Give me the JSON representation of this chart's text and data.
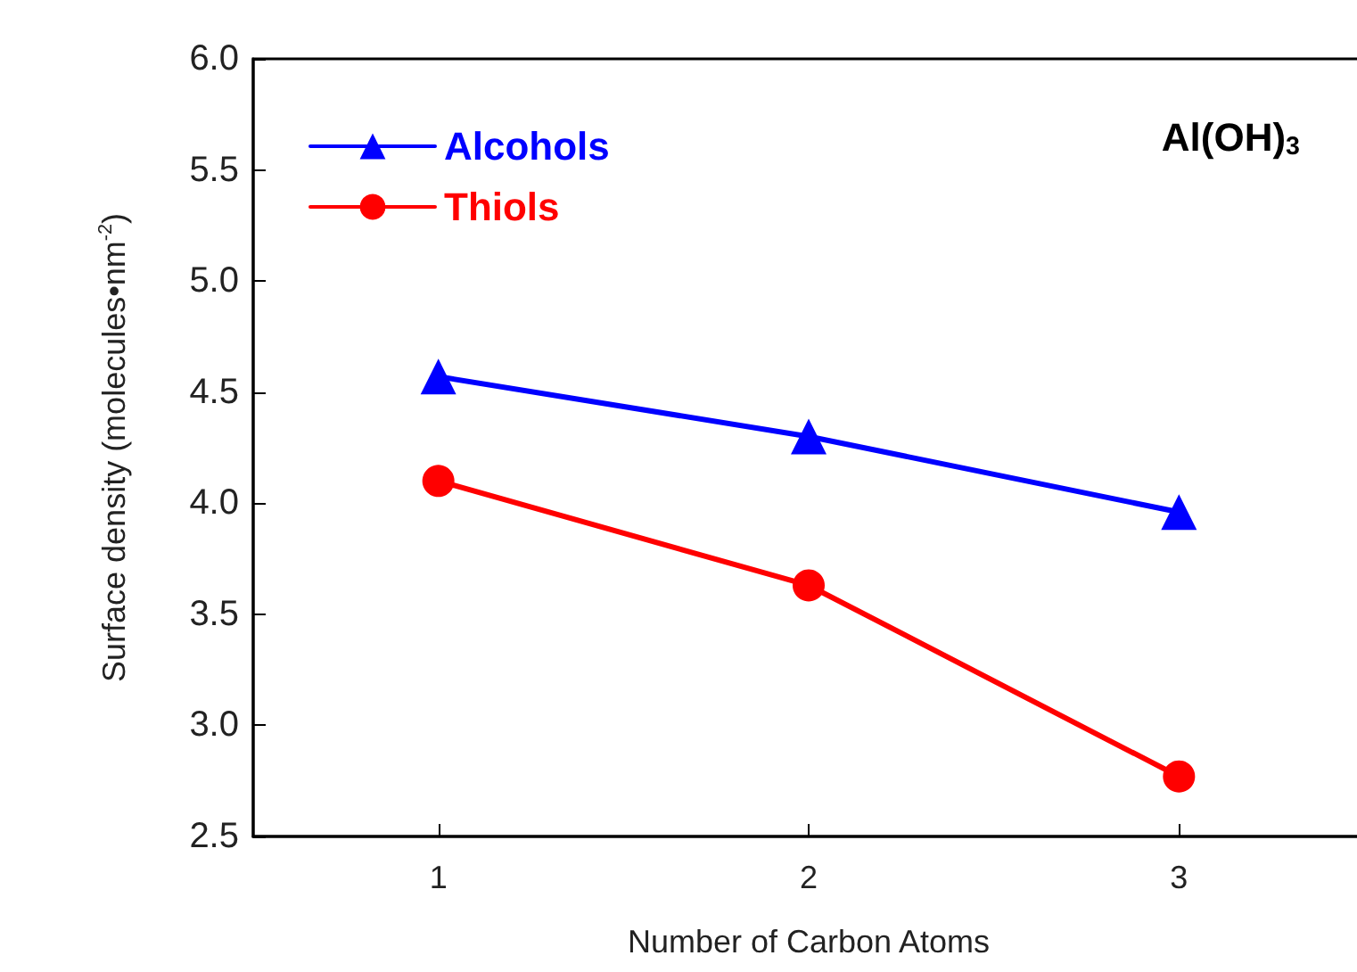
{
  "chart_data": {
    "type": "line",
    "xlabel": "Number of Carbon Atoms",
    "ylabel": "Surface density (molecules•nm$^{-2}$)",
    "x": [
      1,
      2,
      3
    ],
    "xlim": [
      0.5,
      3.5
    ],
    "xticks": [
      1,
      2,
      3
    ],
    "ylim": [
      2.5,
      6.0
    ],
    "yticks": [
      {
        "value": 2.5,
        "label": "2.5"
      },
      {
        "value": 3.0,
        "label": "3.0"
      },
      {
        "value": 3.5,
        "label": "3.5"
      },
      {
        "value": 4.0,
        "label": "4.0"
      },
      {
        "value": 4.5,
        "label": "4.5"
      },
      {
        "value": 5.0,
        "label": "5.0"
      },
      {
        "value": 5.5,
        "label": "5.5"
      },
      {
        "value": 6.0,
        "label": "6.0"
      }
    ],
    "series": [
      {
        "name": "Alcohols",
        "color": "#0000ff",
        "marker": "triangle",
        "values": [
          4.57,
          4.3,
          3.96
        ]
      },
      {
        "name": "Thiols",
        "color": "#ff0000",
        "marker": "circle",
        "values": [
          4.1,
          3.63,
          2.77
        ]
      }
    ],
    "annotations": [
      "Al(OH)$_{3}$"
    ],
    "legend": "top left",
    "grid": false
  }
}
